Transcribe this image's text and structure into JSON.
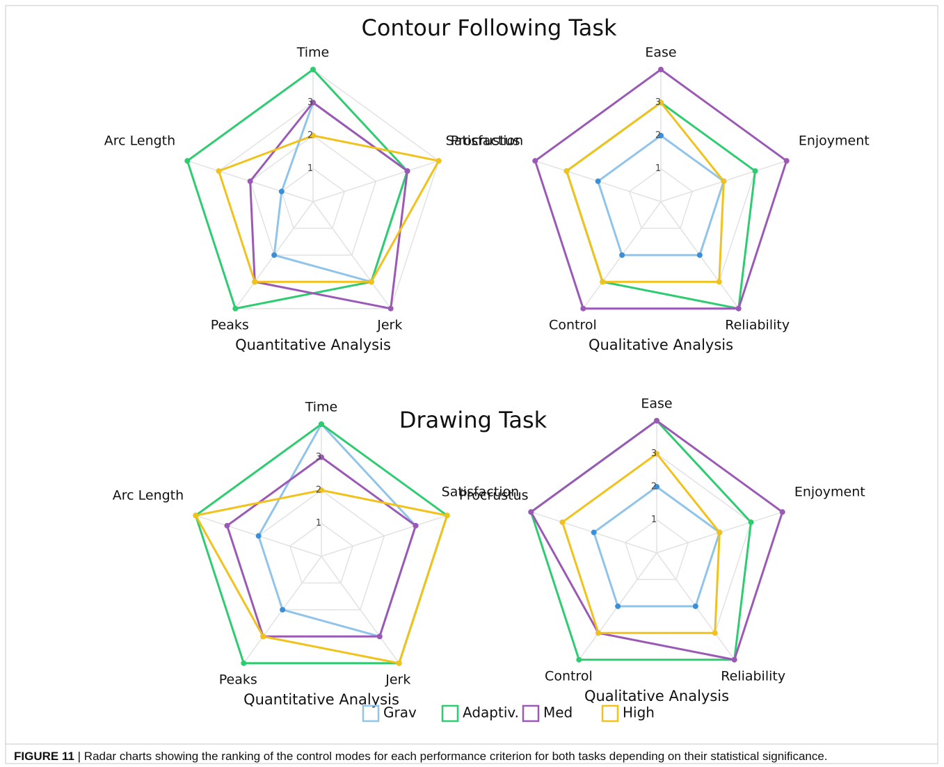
{
  "sections": [
    {
      "title": "Contour Following Task"
    },
    {
      "title": "Drawing Task"
    }
  ],
  "caption": {
    "label": "FIGURE 11",
    "text": "| Radar charts showing the ranking of the control modes for each performance criterion for both tasks depending on their statistical significance."
  },
  "chart_data": [
    {
      "type": "radar",
      "xlabel": "Quantitative Analysis",
      "categories": [
        "Time",
        "Procrustus",
        "Jerk",
        "Peaks",
        "Arc Length"
      ],
      "rlim": [
        0,
        4
      ],
      "rticks": [
        1,
        2,
        3,
        4
      ],
      "grid": true,
      "series": [
        {
          "name": "Grav",
          "color": "#90c4ea",
          "marker_color": "#3a8fd6",
          "values": [
            3,
            3,
            3,
            2,
            1
          ]
        },
        {
          "name": "Adaptiv.",
          "color": "#2ecc71",
          "marker_color": "#2ecc71",
          "values": [
            4,
            3,
            3,
            4,
            4
          ]
        },
        {
          "name": "Med",
          "color": "#9b59b6",
          "marker_color": "#9b59b6",
          "values": [
            3,
            3,
            4,
            3,
            2
          ]
        },
        {
          "name": "High",
          "color": "#f1c21b",
          "marker_color": "#f1c21b",
          "values": [
            2,
            4,
            3,
            3,
            3
          ]
        }
      ]
    },
    {
      "type": "radar",
      "xlabel": "Qualitative Analysis",
      "categories": [
        "Ease",
        "Enjoyment",
        "Reliability",
        "Control",
        "Satisfaction"
      ],
      "rlim": [
        0,
        4
      ],
      "rticks": [
        1,
        2,
        3,
        4
      ],
      "grid": true,
      "series": [
        {
          "name": "Grav",
          "color": "#90c4ea",
          "marker_color": "#3a8fd6",
          "values": [
            2,
            2,
            2,
            2,
            2
          ]
        },
        {
          "name": "Adaptiv.",
          "color": "#2ecc71",
          "marker_color": "#2ecc71",
          "values": [
            3,
            3,
            4,
            3,
            3
          ]
        },
        {
          "name": "Med",
          "color": "#9b59b6",
          "marker_color": "#9b59b6",
          "values": [
            4,
            4,
            4,
            4,
            4
          ]
        },
        {
          "name": "High",
          "color": "#f1c21b",
          "marker_color": "#f1c21b",
          "values": [
            3,
            2,
            3,
            3,
            3
          ]
        }
      ]
    },
    {
      "type": "radar",
      "xlabel": "Quantitative Analysis",
      "categories": [
        "Time",
        "Procrustus",
        "Jerk",
        "Peaks",
        "Arc Length"
      ],
      "rlim": [
        0,
        4
      ],
      "rticks": [
        1,
        2,
        3,
        4
      ],
      "grid": true,
      "series": [
        {
          "name": "Grav",
          "color": "#90c4ea",
          "marker_color": "#3a8fd6",
          "values": [
            4,
            3,
            3,
            2,
            2
          ]
        },
        {
          "name": "Adaptiv.",
          "color": "#2ecc71",
          "marker_color": "#2ecc71",
          "values": [
            4,
            4,
            4,
            4,
            4
          ]
        },
        {
          "name": "Med",
          "color": "#9b59b6",
          "marker_color": "#9b59b6",
          "values": [
            3,
            3,
            3,
            3,
            3
          ]
        },
        {
          "name": "High",
          "color": "#f1c21b",
          "marker_color": "#f1c21b",
          "values": [
            2,
            4,
            4,
            3,
            4
          ]
        }
      ]
    },
    {
      "type": "radar",
      "xlabel": "Qualitative Analysis",
      "categories": [
        "Ease",
        "Enjoyment",
        "Reliability",
        "Control",
        "Satisfaction"
      ],
      "rlim": [
        0,
        4
      ],
      "rticks": [
        1,
        2,
        3,
        4
      ],
      "grid": true,
      "series": [
        {
          "name": "Grav",
          "color": "#90c4ea",
          "marker_color": "#3a8fd6",
          "values": [
            2,
            2,
            2,
            2,
            2
          ]
        },
        {
          "name": "Adaptiv.",
          "color": "#2ecc71",
          "marker_color": "#2ecc71",
          "values": [
            4,
            3,
            4,
            4,
            4
          ]
        },
        {
          "name": "Med",
          "color": "#9b59b6",
          "marker_color": "#9b59b6",
          "values": [
            4,
            4,
            4,
            3,
            4
          ]
        },
        {
          "name": "High",
          "color": "#f1c21b",
          "marker_color": "#f1c21b",
          "values": [
            3,
            2,
            3,
            3,
            3
          ]
        }
      ]
    }
  ]
}
